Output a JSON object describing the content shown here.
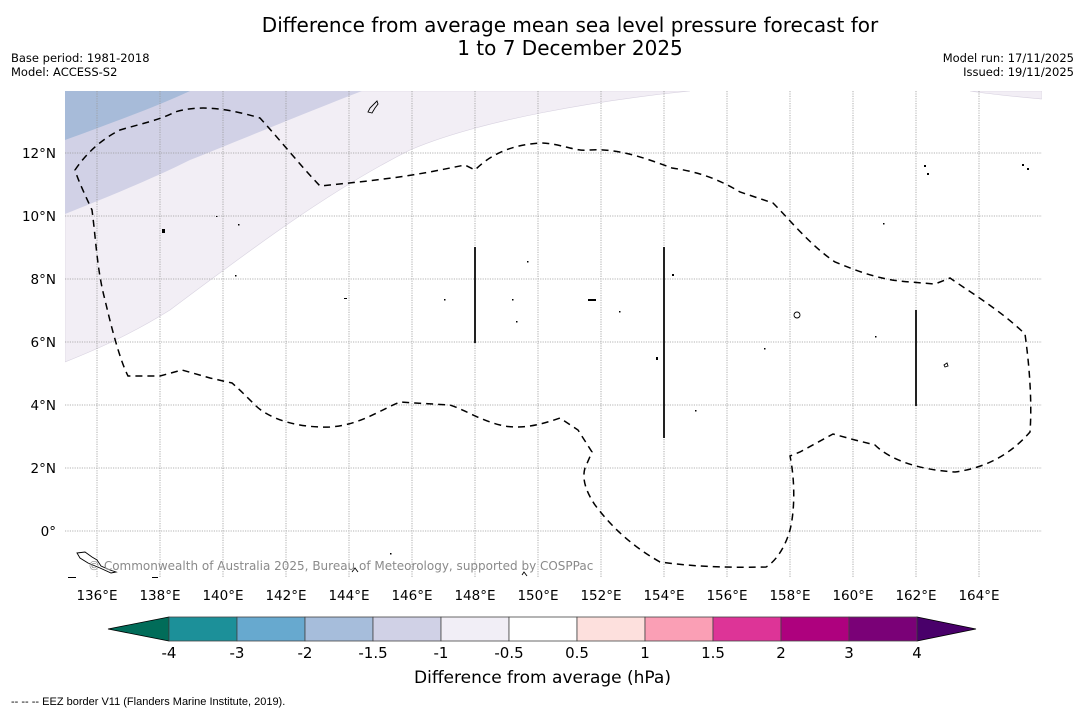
{
  "header": {
    "title_line1": "Difference from average mean sea level pressure forecast for",
    "title_line2": "1 to 7 December 2025",
    "base_period": "Base period: 1981-2018",
    "model": "Model: ACCESS-S2",
    "model_run": "Model run: 17/11/2025",
    "issued": "Issued: 19/11/2025"
  },
  "map": {
    "lon_range": [
      135,
      166
    ],
    "lat_range": [
      -1.5,
      13.9
    ],
    "lon_ticks": [
      "136°E",
      "138°E",
      "140°E",
      "142°E",
      "144°E",
      "146°E",
      "148°E",
      "150°E",
      "152°E",
      "154°E",
      "156°E",
      "158°E",
      "160°E",
      "162°E",
      "164°E"
    ],
    "lat_ticks": [
      "0°",
      "2°N",
      "4°N",
      "6°N",
      "8°N",
      "10°N",
      "12°N"
    ],
    "copyright": "© Commonwealth of Australia 2025, Bureau of Meteorology, supported by COSPPac",
    "anomaly_bands": [
      {
        "range": "-2 to -1.5",
        "color": "#a7bbd9"
      },
      {
        "range": "-1.5 to -1",
        "color": "#d1d1e6"
      },
      {
        "range": "-1 to -0.5",
        "color": "#f2eef5"
      }
    ]
  },
  "colorbar": {
    "title": "Difference from average (hPa)",
    "tick_labels": [
      "-4",
      "-3",
      "-2",
      "-1.5",
      "-1",
      "-0.5",
      "0.5",
      "1",
      "1.5",
      "2",
      "3",
      "4"
    ],
    "under_color": "#016c59",
    "over_color": "#49006a",
    "colors": [
      "#1c9099",
      "#67a9cf",
      "#a6bddb",
      "#d0d1e6",
      "#f1eef6",
      "#ffffff",
      "#fde0dd",
      "#fa9fb5",
      "#dd3497",
      "#ae017e",
      "#7a0177"
    ]
  },
  "footer": {
    "eez_note": "--  --  -- EEZ border V11 (Flanders Marine Institute, 2019)."
  }
}
